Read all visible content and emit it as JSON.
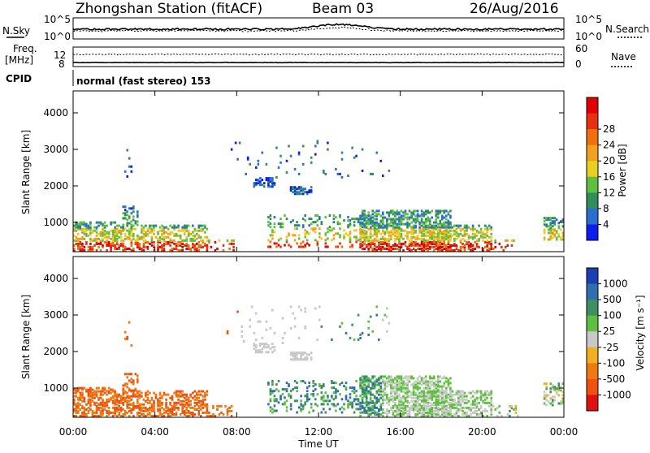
{
  "header": {
    "station_title": "Zhongshan Station (fitACF)",
    "beam": "Beam 03",
    "date": "26/Aug/2016"
  },
  "top_panel": {
    "left_label": "N.Sky",
    "right_label": "N.Search",
    "left_ticks": [
      "10^5",
      "10^0"
    ],
    "right_ticks": [
      "10^5",
      "10^0"
    ]
  },
  "freq_panel": {
    "left_label_line1": "Freq.",
    "left_label_line2": "[MHz]",
    "right_label": "Nave",
    "left_ticks": [
      "12",
      "8"
    ],
    "right_ticks": [
      "60",
      "0"
    ]
  },
  "cpid": {
    "label": "CPID",
    "value": "normal (fast stereo) 153"
  },
  "time_axis": {
    "label": "Time UT",
    "ticks": [
      "00:00",
      "04:00",
      "08:00",
      "12:00",
      "16:00",
      "20:00",
      "00:00"
    ]
  },
  "chart_data": [
    {
      "type": "heatmap",
      "name": "power",
      "ylabel": "Slant Range [km]",
      "yticks": [
        1000,
        2000,
        3000,
        4000
      ],
      "ylim": [
        200,
        4600
      ],
      "xlim": [
        0,
        24
      ],
      "colorbar": {
        "label": "Power [dB]",
        "ticks": [
          "4",
          "8",
          "12",
          "16",
          "20",
          "24",
          "28"
        ],
        "colors": [
          "#0a1ef0",
          "#2a6fd0",
          "#2f8f5a",
          "#5fbf3f",
          "#e8d020",
          "#f2a020",
          "#f07010",
          "#e83010",
          "#e00000"
        ]
      }
    },
    {
      "type": "heatmap",
      "name": "velocity",
      "ylabel": "Slant Range [km]",
      "yticks": [
        1000,
        2000,
        3000,
        4000
      ],
      "ylim": [
        200,
        4600
      ],
      "xlim": [
        0,
        24
      ],
      "colorbar": {
        "label": "Velocity [m s⁻¹]",
        "ticks": [
          "1000",
          "500",
          "100",
          "25",
          "-25",
          "-100",
          "-500",
          "-1000"
        ],
        "colors": [
          "#1a3fb0",
          "#2f6fb0",
          "#3f8f60",
          "#5fc040",
          "#c8c8c8",
          "#f0b020",
          "#f07a10",
          "#f05010",
          "#e01010"
        ]
      }
    }
  ]
}
